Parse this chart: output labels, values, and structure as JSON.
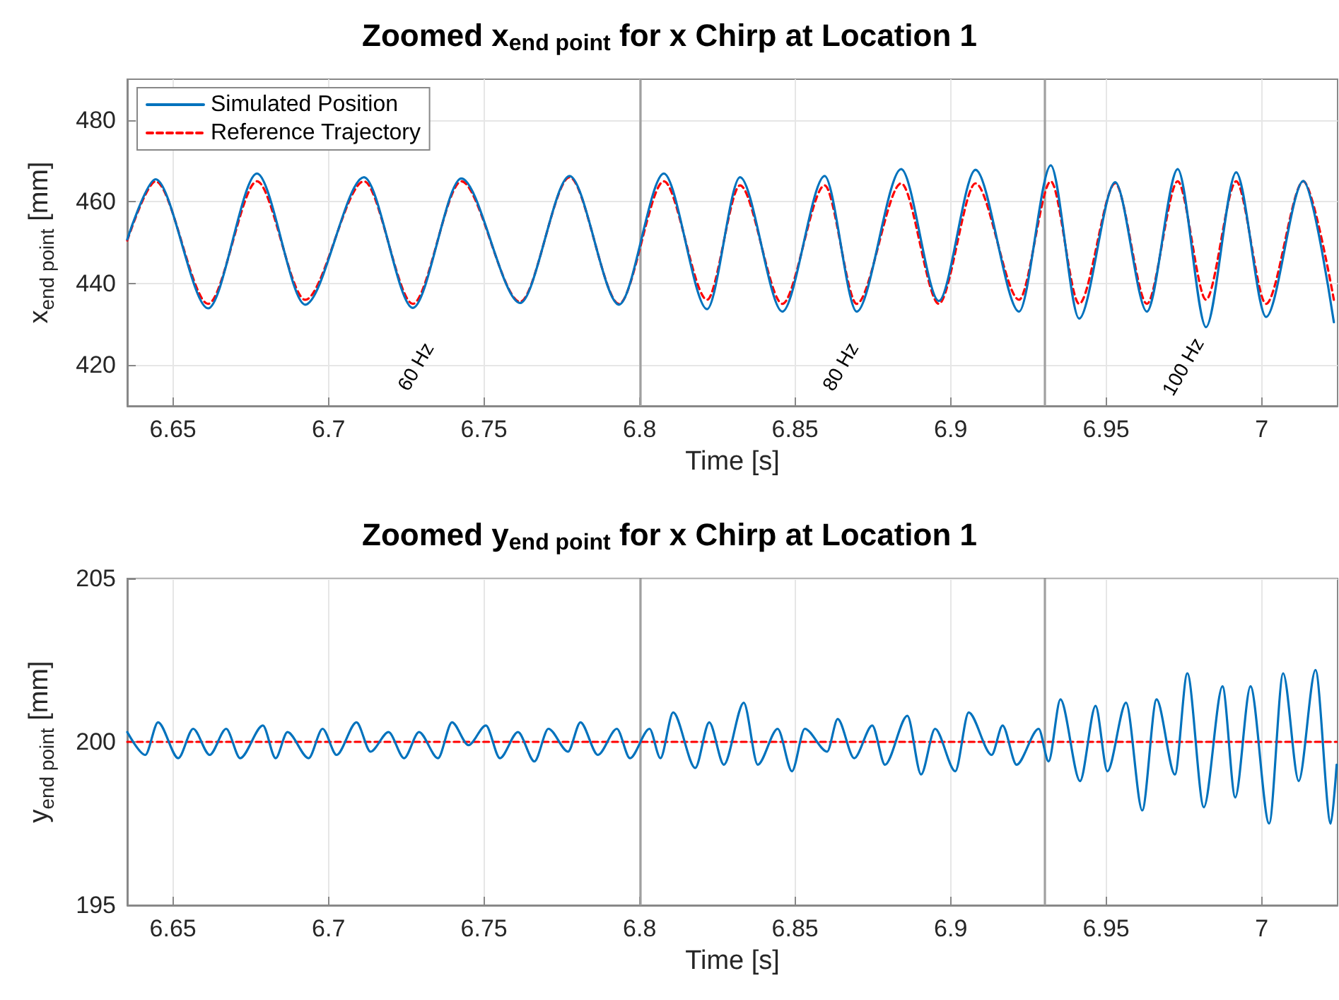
{
  "chart_data": [
    {
      "type": "line",
      "title": "Zoomed x$_{end point}$ for x Chirp at Location 1",
      "xlabel": "Time [s]",
      "ylabel": "x$_{end point}$ [mm]",
      "xlim": [
        6.6353,
        7.0244
      ],
      "xticks": [
        6.65,
        6.7,
        6.75,
        6.8,
        6.85,
        6.9,
        6.95,
        7
      ],
      "ylim": [
        410,
        490
      ],
      "yticks": [
        420,
        440,
        460,
        480
      ],
      "grid": true,
      "legend": "top left",
      "marker": "none",
      "ref_lines": [
        {
          "axis": "x",
          "value": 6.8,
          "color": "#a0a0a0"
        },
        {
          "axis": "x",
          "value": 6.93,
          "color": "#a0a0a0"
        }
      ],
      "annotations": [
        "60 Hz",
        "80 Hz",
        "100 Hz"
      ],
      "series": [
        {
          "name": "Simulated Position",
          "color": "#0072bd",
          "line_style": "solid",
          "x": [
            6.6353,
            6.6444,
            6.6613,
            6.677,
            6.6925,
            6.7114,
            6.7271,
            6.7427,
            6.7616,
            6.7775,
            6.7934,
            6.8078,
            6.8217,
            6.8323,
            6.8459,
            6.8595,
            6.8698,
            6.8841,
            6.8962,
            6.908,
            6.922,
            6.9322,
            6.9413,
            6.9529,
            6.9631,
            6.973,
            6.9821,
            6.9918,
            7.0014,
            7.0134,
            7.0232
          ],
          "values": [
            450.8,
            465.5,
            433.9,
            466.9,
            434.8,
            466,
            434,
            465.7,
            435.2,
            466.3,
            434.8,
            466.9,
            433.7,
            466,
            433.1,
            466.3,
            433.1,
            468,
            435.7,
            467.8,
            433.1,
            468.9,
            431.4,
            464.8,
            433.1,
            468,
            429.3,
            467.2,
            431.8,
            465.1,
            430.5
          ]
        },
        {
          "name": "Reference Trajectory",
          "color": "#ff0000",
          "line_style": "dashed",
          "x": [
            6.6353,
            6.6444,
            6.6613,
            6.677,
            6.6925,
            6.7114,
            6.7271,
            6.7427,
            6.7616,
            6.7775,
            6.7934,
            6.8078,
            6.8217,
            6.8323,
            6.8459,
            6.8595,
            6.8698,
            6.8841,
            6.8962,
            6.908,
            6.922,
            6.9322,
            6.9413,
            6.9529,
            6.9631,
            6.973,
            6.9821,
            6.9918,
            7.0014,
            7.0134,
            7.0232
          ],
          "values": [
            450.5,
            465,
            435,
            465,
            436,
            465,
            435,
            465,
            435.5,
            466,
            435,
            465,
            436,
            464,
            435,
            464,
            435,
            464.5,
            435,
            464.5,
            436,
            465,
            435,
            464.5,
            435,
            465,
            436,
            465,
            435,
            465,
            436
          ]
        }
      ]
    },
    {
      "type": "line",
      "title": "Zoomed y$_{end point}$ for x Chirp at Location 1",
      "xlabel": "Time [s]",
      "ylabel": "y$_{end point}$ [mm]",
      "xlim": [
        6.6353,
        7.0244
      ],
      "xticks": [
        6.65,
        6.7,
        6.75,
        6.8,
        6.85,
        6.9,
        6.95,
        7
      ],
      "ylim": [
        195,
        205
      ],
      "yticks": [
        195,
        200,
        205
      ],
      "grid": true,
      "marker": "none",
      "ref_lines": [
        {
          "axis": "x",
          "value": 6.8,
          "color": "#a0a0a0"
        },
        {
          "axis": "x",
          "value": 6.93,
          "color": "#a0a0a0"
        }
      ],
      "series": [
        {
          "color": "#0072bd",
          "line_style": "solid",
          "x": [
            6.6353,
            6.6411,
            6.6452,
            6.6517,
            6.6565,
            6.6618,
            6.6671,
            6.6716,
            6.6789,
            6.683,
            6.6868,
            6.6936,
            6.6981,
            6.7026,
            6.709,
            6.7135,
            6.7193,
            6.7243,
            6.7291,
            6.7352,
            6.7397,
            6.745,
            6.7506,
            6.7551,
            6.7609,
            6.7662,
            6.7707,
            6.777,
            6.781,
            6.7866,
            6.7927,
            6.7969,
            6.8032,
            6.8067,
            6.8108,
            6.8179,
            6.8224,
            6.8271,
            6.8335,
            6.838,
            6.8444,
            6.849,
            6.8531,
            6.8603,
            6.8637,
            6.869,
            6.8748,
            6.8789,
            6.8861,
            6.8905,
            6.895,
            6.9015,
            6.9058,
            6.9132,
            6.9167,
            6.9212,
            6.9283,
            6.9315,
            6.9353,
            6.9416,
            6.9466,
            6.9504,
            6.9564,
            6.9616,
            6.9662,
            6.9721,
            6.9761,
            6.9814,
            6.9874,
            6.9915,
            6.9964,
            7.0024,
            7.0069,
            7.0119,
            7.0173,
            7.0222,
            7.0241
          ],
          "values": [
            200.3,
            199.6,
            200.6,
            199.5,
            200.4,
            199.6,
            200.4,
            199.5,
            200.5,
            199.5,
            200.3,
            199.5,
            200.4,
            199.6,
            200.6,
            199.7,
            200.3,
            199.5,
            200.3,
            199.5,
            200.6,
            199.9,
            200.5,
            199.5,
            200.3,
            199.4,
            200.4,
            199.7,
            200.6,
            199.6,
            200.4,
            199.5,
            200.4,
            199.5,
            200.9,
            199.2,
            200.6,
            199.3,
            201.2,
            199.3,
            200.4,
            199.1,
            200.4,
            199.7,
            200.7,
            199.5,
            200.5,
            199.3,
            200.8,
            199,
            200.4,
            199.1,
            200.9,
            199.6,
            200.5,
            199.3,
            200.4,
            199.4,
            201.3,
            198.8,
            201.1,
            199.1,
            201.2,
            197.9,
            201.3,
            199,
            202.1,
            198,
            201.7,
            198.3,
            201.7,
            197.5,
            202.1,
            198.8,
            202.2,
            197.5,
            199.3
          ]
        },
        {
          "color": "#ff0000",
          "line_style": "dashed",
          "x": [
            6.6353,
            7.0241
          ],
          "values": [
            200,
            200
          ]
        }
      ]
    }
  ]
}
